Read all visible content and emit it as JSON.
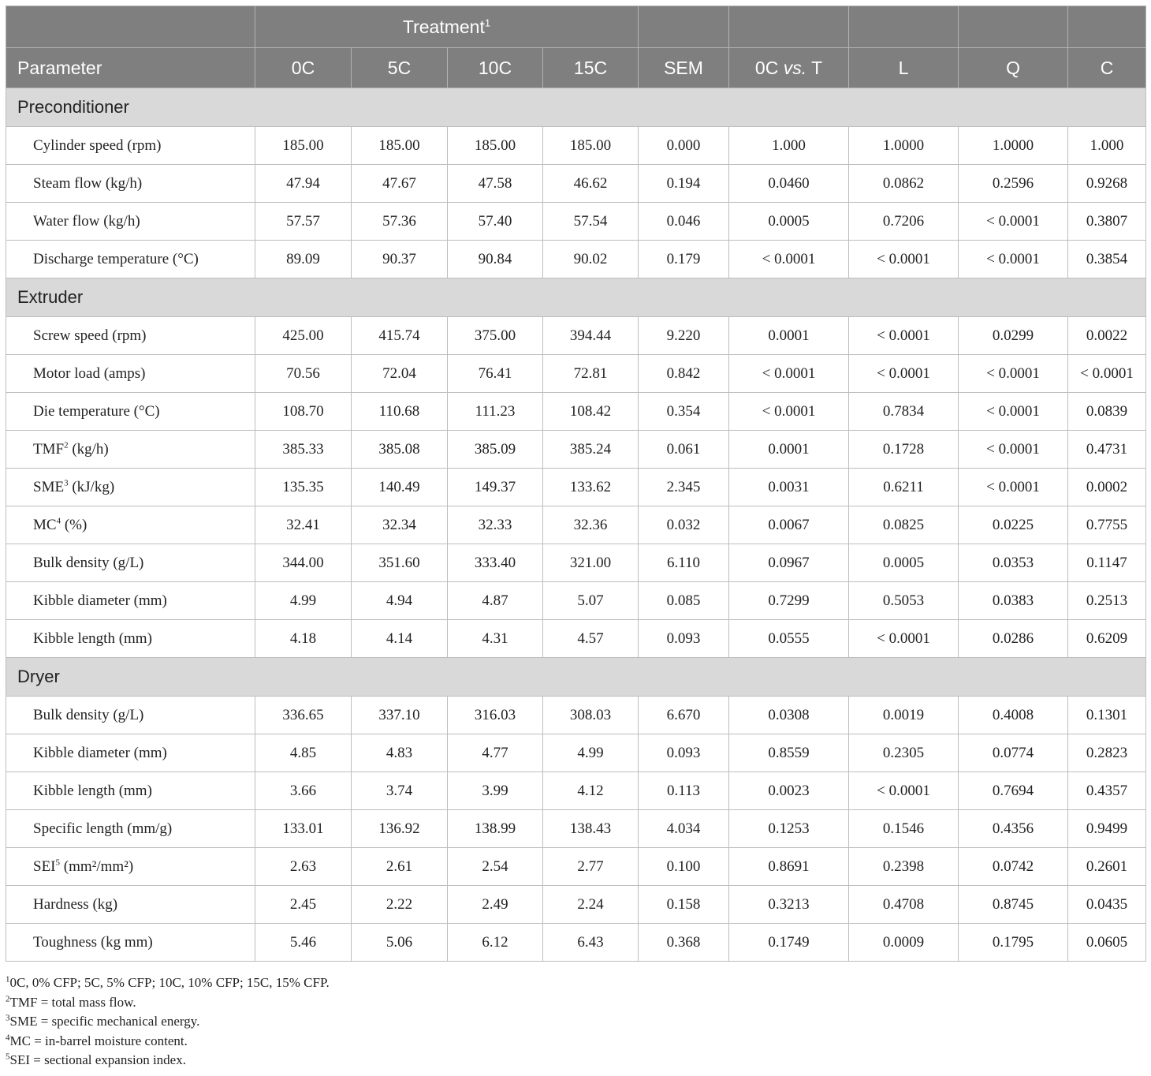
{
  "header": {
    "treatment_label": "Treatment",
    "treatment_sup": "1",
    "columns": [
      "Parameter",
      "0C",
      "5C",
      "10C",
      "15C",
      "SEM",
      "0C vs. T",
      "L",
      "Q",
      "C"
    ]
  },
  "sections": [
    {
      "title": "Preconditioner",
      "rows": [
        {
          "label": "Cylinder speed (rpm)",
          "sup": "",
          "unit": "",
          "values": [
            "185.00",
            "185.00",
            "185.00",
            "185.00",
            "0.000",
            "1.000",
            "1.0000",
            "1.0000",
            "1.000"
          ]
        },
        {
          "label": "Steam flow (kg/h)",
          "sup": "",
          "unit": "",
          "values": [
            "47.94",
            "47.67",
            "47.58",
            "46.62",
            "0.194",
            "0.0460",
            "0.0862",
            "0.2596",
            "0.9268"
          ]
        },
        {
          "label": "Water flow (kg/h)",
          "sup": "",
          "unit": "",
          "values": [
            "57.57",
            "57.36",
            "57.40",
            "57.54",
            "0.046",
            "0.0005",
            "0.7206",
            "< 0.0001",
            "0.3807"
          ]
        },
        {
          "label": "Discharge temperature (°C)",
          "sup": "",
          "unit": "",
          "values": [
            "89.09",
            "90.37",
            "90.84",
            "90.02",
            "0.179",
            "< 0.0001",
            "< 0.0001",
            "< 0.0001",
            "0.3854"
          ]
        }
      ]
    },
    {
      "title": "Extruder",
      "rows": [
        {
          "label": "Screw speed (rpm)",
          "sup": "",
          "unit": "",
          "values": [
            "425.00",
            "415.74",
            "375.00",
            "394.44",
            "9.220",
            "0.0001",
            "< 0.0001",
            "0.0299",
            "0.0022"
          ]
        },
        {
          "label": "Motor load (amps)",
          "sup": "",
          "unit": "",
          "values": [
            "70.56",
            "72.04",
            "76.41",
            "72.81",
            "0.842",
            "< 0.0001",
            "< 0.0001",
            "< 0.0001",
            "< 0.0001"
          ]
        },
        {
          "label": "Die temperature (°C)",
          "sup": "",
          "unit": "",
          "values": [
            "108.70",
            "110.68",
            "111.23",
            "108.42",
            "0.354",
            "< 0.0001",
            "0.7834",
            "< 0.0001",
            "0.0839"
          ]
        },
        {
          "label": "TMF",
          "sup": "2",
          "unit": " (kg/h)",
          "values": [
            "385.33",
            "385.08",
            "385.09",
            "385.24",
            "0.061",
            "0.0001",
            "0.1728",
            "< 0.0001",
            "0.4731"
          ]
        },
        {
          "label": "SME",
          "sup": "3",
          "unit": " (kJ/kg)",
          "values": [
            "135.35",
            "140.49",
            "149.37",
            "133.62",
            "2.345",
            "0.0031",
            "0.6211",
            "< 0.0001",
            "0.0002"
          ]
        },
        {
          "label": "MC",
          "sup": "4",
          "unit": " (%)",
          "values": [
            "32.41",
            "32.34",
            "32.33",
            "32.36",
            "0.032",
            "0.0067",
            "0.0825",
            "0.0225",
            "0.7755"
          ]
        },
        {
          "label": "Bulk density (g/L)",
          "sup": "",
          "unit": "",
          "values": [
            "344.00",
            "351.60",
            "333.40",
            "321.00",
            "6.110",
            "0.0967",
            "0.0005",
            "0.0353",
            "0.1147"
          ]
        },
        {
          "label": "Kibble diameter (mm)",
          "sup": "",
          "unit": "",
          "values": [
            "4.99",
            "4.94",
            "4.87",
            "5.07",
            "0.085",
            "0.7299",
            "0.5053",
            "0.0383",
            "0.2513"
          ]
        },
        {
          "label": "Kibble length (mm)",
          "sup": "",
          "unit": "",
          "values": [
            "4.18",
            "4.14",
            "4.31",
            "4.57",
            "0.093",
            "0.0555",
            "< 0.0001",
            "0.0286",
            "0.6209"
          ]
        }
      ]
    },
    {
      "title": "Dryer",
      "rows": [
        {
          "label": "Bulk density (g/L)",
          "sup": "",
          "unit": "",
          "values": [
            "336.65",
            "337.10",
            "316.03",
            "308.03",
            "6.670",
            "0.0308",
            "0.0019",
            "0.4008",
            "0.1301"
          ]
        },
        {
          "label": "Kibble diameter (mm)",
          "sup": "",
          "unit": "",
          "values": [
            "4.85",
            "4.83",
            "4.77",
            "4.99",
            "0.093",
            "0.8559",
            "0.2305",
            "0.0774",
            "0.2823"
          ]
        },
        {
          "label": "Kibble length (mm)",
          "sup": "",
          "unit": "",
          "values": [
            "3.66",
            "3.74",
            "3.99",
            "4.12",
            "0.113",
            "0.0023",
            "< 0.0001",
            "0.7694",
            "0.4357"
          ]
        },
        {
          "label": "Specific length (mm/g)",
          "sup": "",
          "unit": "",
          "values": [
            "133.01",
            "136.92",
            "138.99",
            "138.43",
            "4.034",
            "0.1253",
            "0.1546",
            "0.4356",
            "0.9499"
          ]
        },
        {
          "label": "SEI",
          "sup": "5",
          "unit": " (mm²/mm²)",
          "values": [
            "2.63",
            "2.61",
            "2.54",
            "2.77",
            "0.100",
            "0.8691",
            "0.2398",
            "0.0742",
            "0.2601"
          ]
        },
        {
          "label": "Hardness (kg)",
          "sup": "",
          "unit": "",
          "values": [
            "2.45",
            "2.22",
            "2.49",
            "2.24",
            "0.158",
            "0.3213",
            "0.4708",
            "0.8745",
            "0.0435"
          ]
        },
        {
          "label": "Toughness (kg mm)",
          "sup": "",
          "unit": "",
          "values": [
            "5.46",
            "5.06",
            "6.12",
            "6.43",
            "0.368",
            "0.1749",
            "0.0009",
            "0.1795",
            "0.0605"
          ]
        }
      ]
    }
  ],
  "footnotes": [
    {
      "sup": "1",
      "text": "0C, 0% CFP; 5C, 5% CFP; 10C, 10% CFP; 15C, 15% CFP."
    },
    {
      "sup": "2",
      "text": "TMF = total mass flow."
    },
    {
      "sup": "3",
      "text": "SME = specific mechanical energy."
    },
    {
      "sup": "4",
      "text": "MC = in-barrel moisture content."
    },
    {
      "sup": "5",
      "text": "SEI = sectional expansion index."
    }
  ]
}
